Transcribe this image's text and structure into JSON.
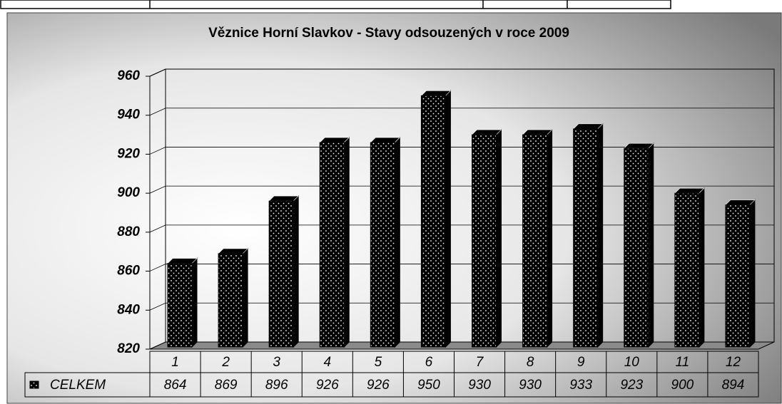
{
  "chart_data": {
    "type": "bar",
    "title": "Věznice Horní Slavkov - Stavy odsouzených v roce 2009",
    "categories": [
      "1",
      "2",
      "3",
      "4",
      "5",
      "6",
      "7",
      "8",
      "9",
      "10",
      "11",
      "12"
    ],
    "series": [
      {
        "name": "CELKEM",
        "color": "#000000",
        "values": [
          864,
          869,
          896,
          926,
          926,
          950,
          930,
          930,
          933,
          923,
          900,
          894
        ]
      }
    ],
    "ylim": [
      820,
      960
    ],
    "yticks": [
      820,
      840,
      860,
      880,
      900,
      920,
      940,
      960
    ],
    "grid": true
  }
}
